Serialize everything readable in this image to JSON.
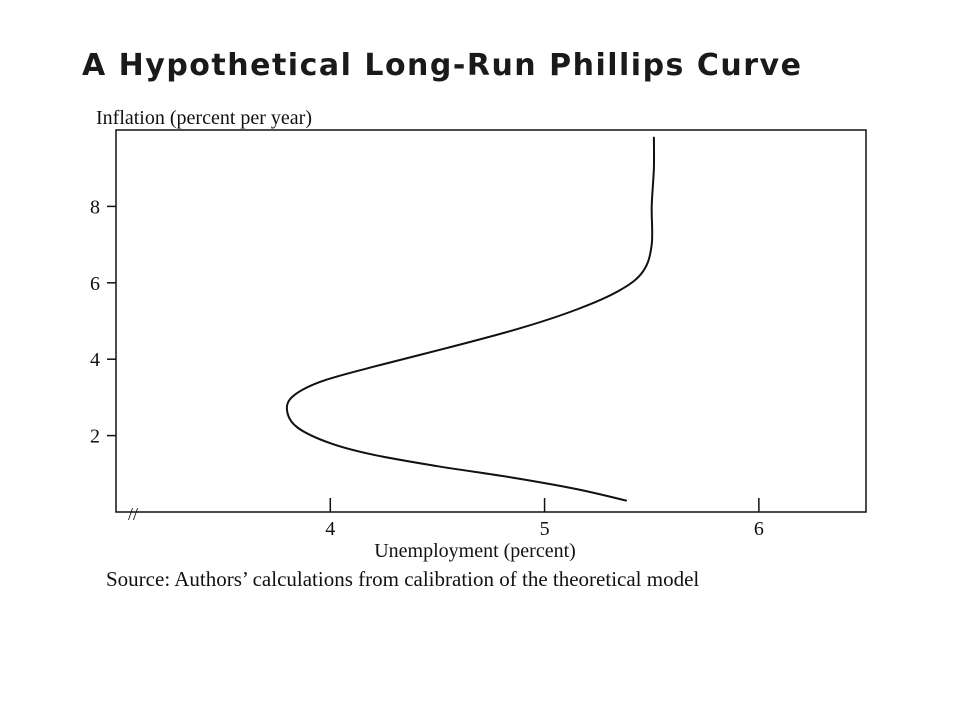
{
  "title": "A Hypothetical Long-Run Phillips Curve",
  "caption": "Source: Authors’ calculations from calibration of the theoretical model",
  "colors": {
    "line": "#111111",
    "background": "#ffffff"
  },
  "chart_data": {
    "type": "line",
    "title": "A Hypothetical Long-Run Phillips Curve",
    "xlabel": "Unemployment (percent)",
    "ylabel": "Inflation (percent per year)",
    "xlim": [
      3.0,
      6.5
    ],
    "ylim": [
      0,
      10
    ],
    "x_ticks": [
      4,
      5,
      6
    ],
    "y_ticks": [
      2,
      4,
      6,
      8
    ],
    "axis_break": "//",
    "grid": false,
    "legend": "none",
    "series": [
      {
        "x": [
          5.38,
          5.15,
          4.85,
          4.5,
          4.2,
          4.0,
          3.85,
          3.8,
          3.82,
          3.95,
          4.2,
          4.55,
          4.88,
          5.15,
          5.35,
          5.46,
          5.5,
          5.5,
          5.51,
          5.51
        ],
        "y": [
          0.3,
          0.6,
          0.9,
          1.2,
          1.5,
          1.8,
          2.2,
          2.6,
          3.0,
          3.4,
          3.8,
          4.3,
          4.8,
          5.3,
          5.8,
          6.3,
          7.0,
          8.0,
          9.0,
          9.8
        ]
      }
    ]
  }
}
